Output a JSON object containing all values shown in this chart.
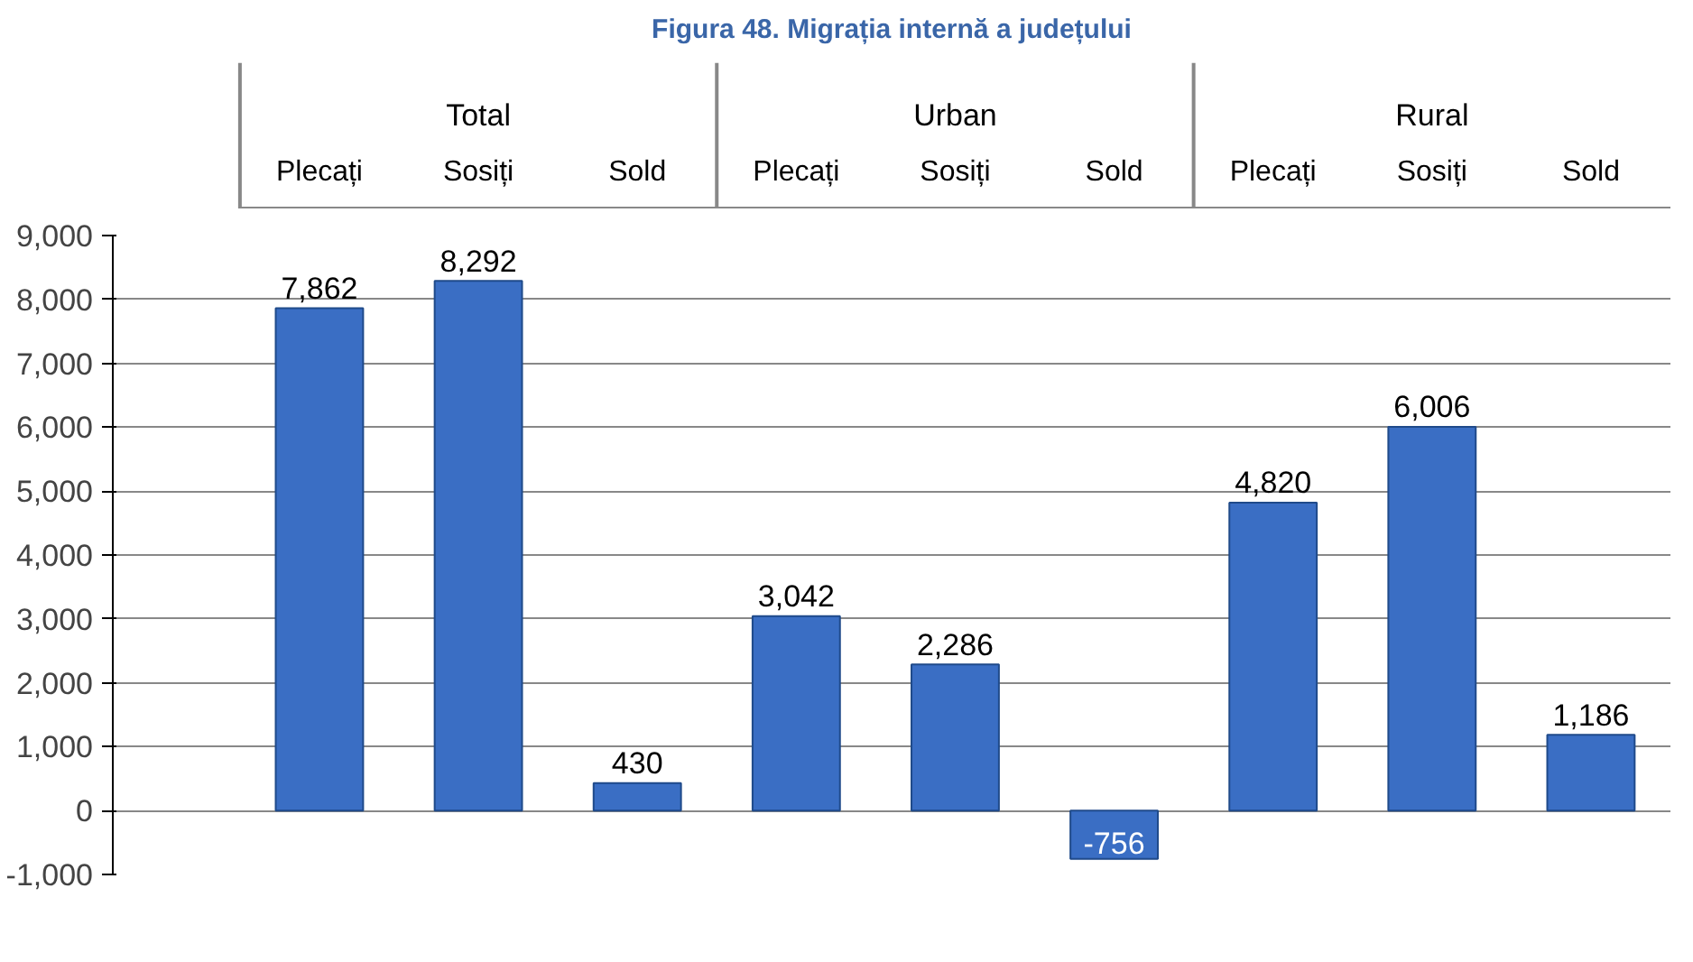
{
  "chart_data": {
    "type": "bar",
    "title": "Figura 48. Migrația internă a județului",
    "categories": [
      "Plecați",
      "Sosiți",
      "Sold",
      "Plecați",
      "Sosiți",
      "Sold",
      "Plecați",
      "Sosiți",
      "Sold"
    ],
    "annotations": [
      "Total",
      "Urban",
      "Rural"
    ],
    "values": [
      7862,
      8292,
      430,
      3042,
      2286,
      -756,
      4820,
      6006,
      1186
    ],
    "value_labels": [
      "7,862",
      "8,292",
      "430",
      "3,042",
      "2,286",
      "-756",
      "4,820",
      "6,006",
      "1,186"
    ],
    "color": "#3a6ec4",
    "ylim": [
      -1000,
      9000
    ],
    "yticks": [
      {
        "value": -1000,
        "label": "-1,000"
      },
      {
        "value": 0,
        "label": "0"
      },
      {
        "value": 1000,
        "label": "1,000"
      },
      {
        "value": 2000,
        "label": "2,000"
      },
      {
        "value": 3000,
        "label": "3,000"
      },
      {
        "value": 4000,
        "label": "4,000"
      },
      {
        "value": 5000,
        "label": "5,000"
      },
      {
        "value": 6000,
        "label": "6,000"
      },
      {
        "value": 7000,
        "label": "7,000"
      },
      {
        "value": 8000,
        "label": "8,000"
      },
      {
        "value": 9000,
        "label": "9,000"
      }
    ],
    "grid": "y"
  }
}
